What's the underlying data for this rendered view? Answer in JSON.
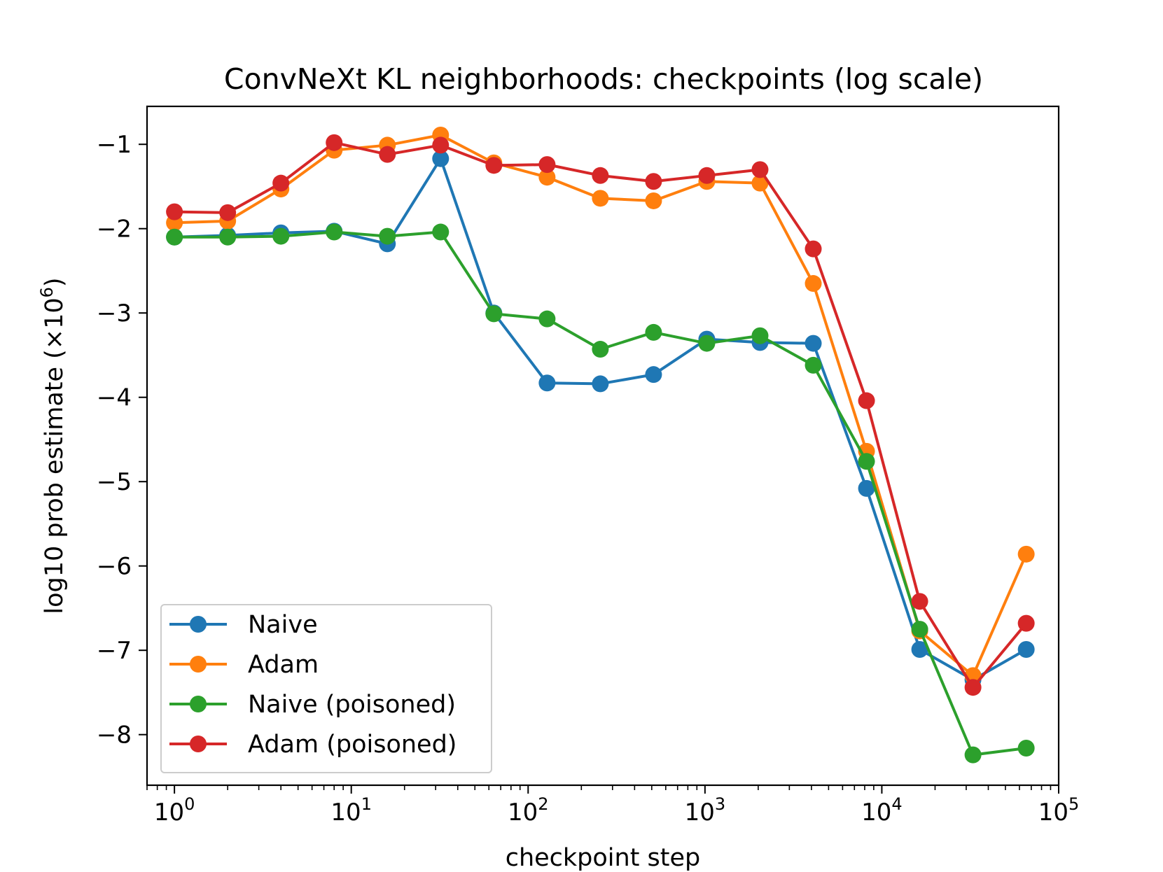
{
  "chart_data": {
    "type": "line",
    "title": "ConvNeXt KL neighborhoods: checkpoints (log scale)",
    "xlabel": "checkpoint step",
    "ylabel_main": "log10 prob estimate (×10",
    "ylabel_sup": "6",
    "ylabel_close": ")",
    "xscale": "log",
    "xlim": [
      0.7,
      100000
    ],
    "ylim": [
      -8.6,
      -0.55
    ],
    "x_ticks": [
      {
        "value": 1,
        "base": "10",
        "exp": "0"
      },
      {
        "value": 10,
        "base": "10",
        "exp": "1"
      },
      {
        "value": 100,
        "base": "10",
        "exp": "2"
      },
      {
        "value": 1000,
        "base": "10",
        "exp": "3"
      },
      {
        "value": 10000,
        "base": "10",
        "exp": "4"
      },
      {
        "value": 100000,
        "base": "10",
        "exp": "5"
      }
    ],
    "y_ticks": [
      {
        "value": -1,
        "label": "−1"
      },
      {
        "value": -2,
        "label": "−2"
      },
      {
        "value": -3,
        "label": "−3"
      },
      {
        "value": -4,
        "label": "−4"
      },
      {
        "value": -5,
        "label": "−5"
      },
      {
        "value": -6,
        "label": "−6"
      },
      {
        "value": -7,
        "label": "−7"
      },
      {
        "value": -8,
        "label": "−8"
      }
    ],
    "x": [
      1,
      2,
      4,
      8,
      16,
      32,
      64,
      128,
      256,
      512,
      1024,
      2048,
      4096,
      8192,
      16384,
      32768,
      65536
    ],
    "series": [
      {
        "name": "Naive",
        "color": "#1f77b4",
        "values": [
          -2.1,
          -2.08,
          -2.05,
          -2.03,
          -2.18,
          -1.17,
          -3.0,
          -3.83,
          -3.84,
          -3.73,
          -3.31,
          -3.35,
          -3.36,
          -5.08,
          -6.99,
          -7.35,
          -6.99
        ]
      },
      {
        "name": "Adam",
        "color": "#ff7f0e",
        "values": [
          -1.93,
          -1.91,
          -1.53,
          -1.07,
          -1.01,
          -0.89,
          -1.22,
          -1.39,
          -1.64,
          -1.67,
          -1.44,
          -1.46,
          -2.65,
          -4.64,
          -6.77,
          -7.3,
          -5.86
        ]
      },
      {
        "name": "Naive (poisoned)",
        "color": "#2ca02c",
        "values": [
          -2.1,
          -2.1,
          -2.09,
          -2.04,
          -2.09,
          -2.04,
          -3.01,
          -3.07,
          -3.43,
          -3.23,
          -3.36,
          -3.27,
          -3.62,
          -4.76,
          -6.75,
          -8.24,
          -8.16
        ]
      },
      {
        "name": "Adam (poisoned)",
        "color": "#d62728",
        "values": [
          -1.8,
          -1.81,
          -1.46,
          -0.98,
          -1.12,
          -1.01,
          -1.25,
          -1.24,
          -1.37,
          -1.44,
          -1.37,
          -1.3,
          -2.24,
          -4.04,
          -6.42,
          -7.44,
          -6.68
        ]
      }
    ],
    "legend": {
      "location": "lower-left"
    }
  }
}
